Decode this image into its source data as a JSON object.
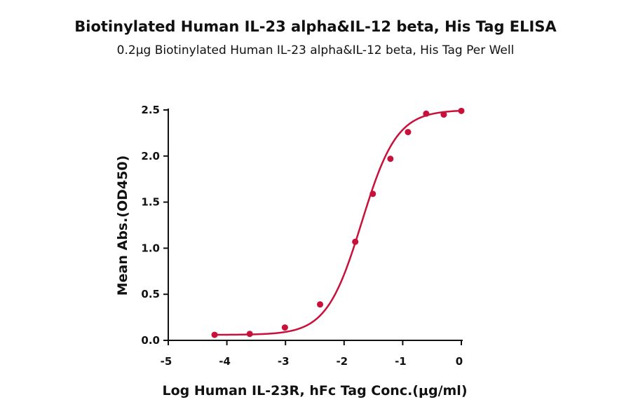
{
  "chart_data": {
    "type": "scatter",
    "title": "Biotinylated Human IL-23 alpha&IL-12 beta, His Tag ELISA",
    "subtitle": "0.2μg Biotinylated Human IL-23 alpha&IL-12 beta, His Tag Per Well",
    "xlabel": "Log Human IL-23R, hFc Tag Conc.(μg/ml)",
    "ylabel": "Mean Abs.(OD450)",
    "xlim": [
      -5,
      0
    ],
    "ylim": [
      0,
      2.5
    ],
    "x_ticks": [
      "-5",
      "-4",
      "-3",
      "-2",
      "-1",
      "0"
    ],
    "y_ticks": [
      "0.0",
      "0.5",
      "1.0",
      "1.5",
      "2.0",
      "2.5"
    ],
    "grid": false,
    "legend": "none",
    "color": "#c8103a",
    "series": [
      {
        "x": [
          -4.21,
          -3.61,
          -3.01,
          -2.41,
          -1.81,
          -1.51,
          -1.21,
          -0.91,
          -0.6,
          -0.3,
          0.0
        ],
        "y": [
          0.06,
          0.07,
          0.14,
          0.39,
          1.07,
          1.59,
          1.97,
          2.26,
          2.46,
          2.45,
          2.49
        ]
      }
    ],
    "fit_curve": {
      "type": "4PL",
      "bottom": 0.06,
      "top": 2.5,
      "log_ec50": -1.7,
      "hill": 1.45
    }
  }
}
